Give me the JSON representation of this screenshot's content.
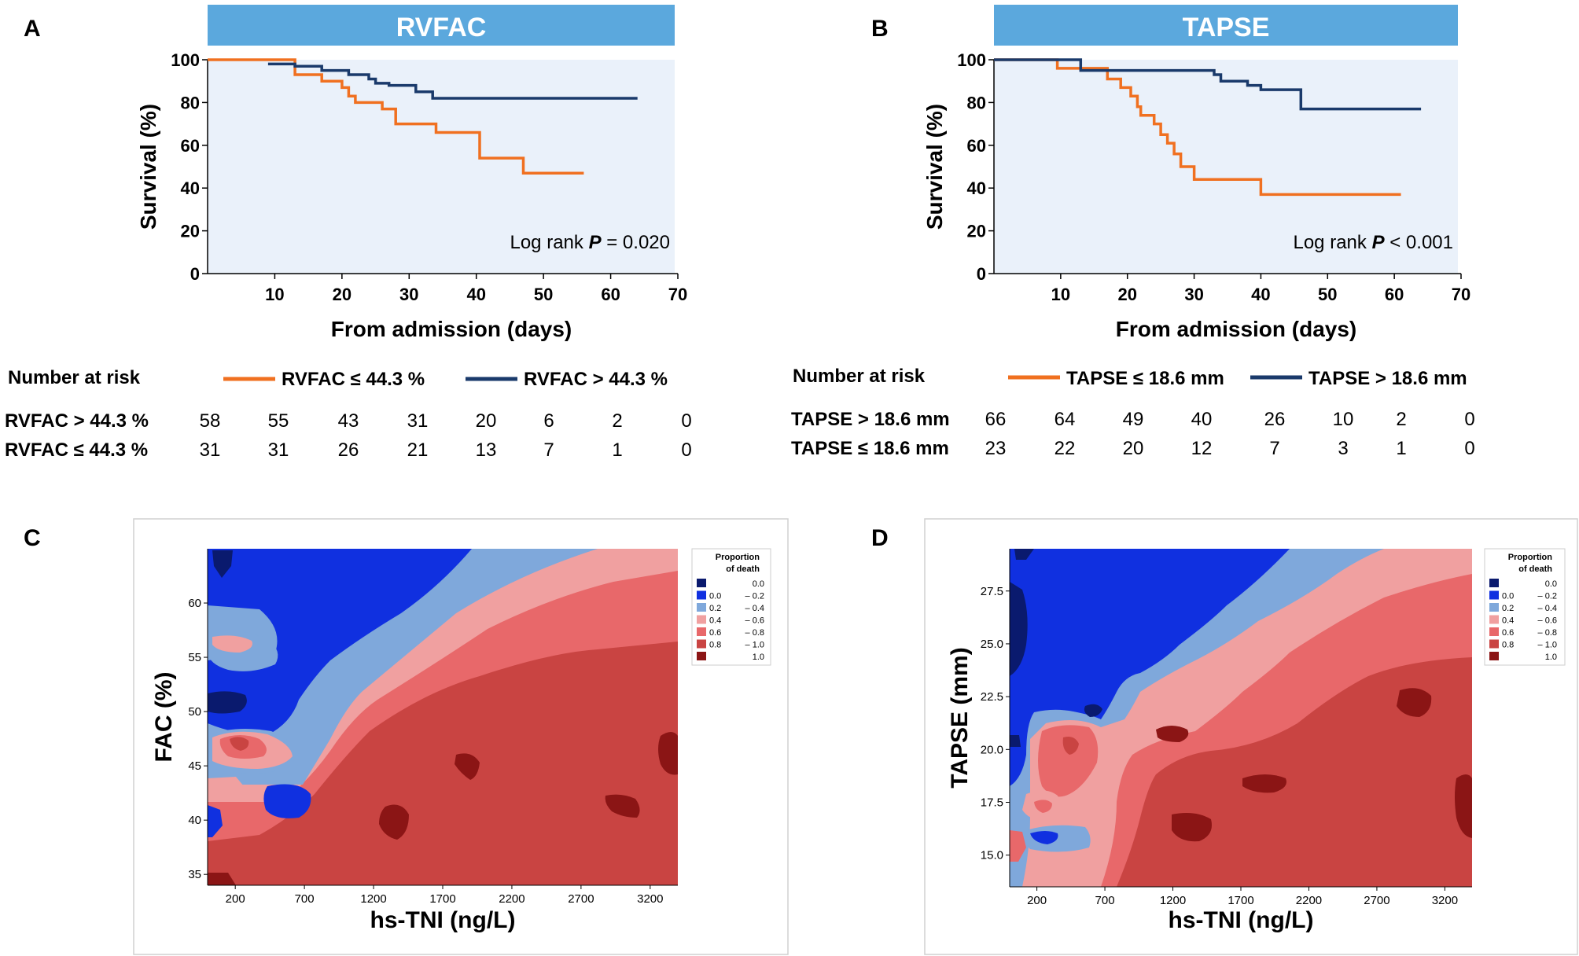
{
  "chart_data": [
    {
      "id": "A",
      "type": "line",
      "panel_label": "A",
      "title": "RVFAC",
      "xlabel": "From admission (days)",
      "ylabel": "Survival (%)",
      "xlim": [
        0,
        70
      ],
      "ylim": [
        0,
        100
      ],
      "x_ticks": [
        "10",
        "20",
        "30",
        "40",
        "50",
        "60",
        "70"
      ],
      "y_ticks": [
        "0",
        "20",
        "40",
        "60",
        "80",
        "100"
      ],
      "annotation": {
        "prefix": "Log rank ",
        "italic": "P",
        "suffix": " = 0.020"
      },
      "series": [
        {
          "name": "RVFAC ≤ 44.3 %",
          "color": "#f07020",
          "x": [
            0,
            13,
            13,
            17,
            17,
            20,
            20,
            21,
            21,
            22,
            22,
            26,
            26,
            28,
            28,
            34,
            34,
            40.5,
            40.5,
            47,
            47,
            56
          ],
          "y": [
            100,
            100,
            93,
            93,
            90,
            90,
            87,
            87,
            83,
            83,
            80,
            80,
            77,
            77,
            70,
            70,
            66,
            66,
            54,
            54,
            47,
            47
          ]
        },
        {
          "name": "RVFAC > 44.3 %",
          "color": "#1a3a6b",
          "x": [
            9,
            13,
            13,
            17,
            17,
            21,
            21,
            24,
            24,
            25,
            25,
            27,
            27,
            31,
            31,
            33.5,
            33.5,
            64
          ],
          "y": [
            98,
            98,
            97,
            97,
            95,
            95,
            93,
            93,
            91,
            91,
            89,
            89,
            88,
            88,
            85,
            85,
            82,
            82
          ]
        }
      ],
      "legend": {
        "title": "Number at risk",
        "entries": [
          {
            "label": "RVFAC ≤ 44.3 %",
            "color": "#f07020"
          },
          {
            "label": "RVFAC > 44.3 %",
            "color": "#1a3a6b"
          }
        ]
      },
      "risk_table": [
        {
          "label": "RVFAC > 44.3 %",
          "values": [
            "58",
            "55",
            "43",
            "31",
            "20",
            "6",
            "2",
            "0"
          ]
        },
        {
          "label": "RVFAC ≤ 44.3 %",
          "values": [
            "31",
            "31",
            "26",
            "21",
            "13",
            "7",
            "1",
            "0"
          ]
        }
      ]
    },
    {
      "id": "B",
      "type": "line",
      "panel_label": "B",
      "title": "TAPSE",
      "xlabel": "From admission (days)",
      "ylabel": "Survival (%)",
      "xlim": [
        0,
        70
      ],
      "ylim": [
        0,
        100
      ],
      "x_ticks": [
        "10",
        "20",
        "30",
        "40",
        "50",
        "60",
        "70"
      ],
      "y_ticks": [
        "0",
        "20",
        "40",
        "60",
        "80",
        "100"
      ],
      "annotation": {
        "prefix": "Log rank ",
        "italic": "P",
        "suffix": " < 0.001"
      },
      "series": [
        {
          "name": "TAPSE ≤ 18.6 mm",
          "color": "#f07020",
          "x": [
            0,
            9.5,
            9.5,
            17,
            17,
            19,
            19,
            20.5,
            20.5,
            21.5,
            21.5,
            22,
            22,
            24,
            24,
            25,
            25,
            26,
            26,
            27,
            27,
            28,
            28,
            30,
            30,
            40,
            40,
            61
          ],
          "y": [
            100,
            100,
            96,
            96,
            91,
            91,
            87,
            87,
            83,
            83,
            78,
            78,
            74,
            74,
            70,
            70,
            65,
            65,
            61,
            61,
            56,
            56,
            50,
            50,
            44,
            44,
            37,
            37
          ]
        },
        {
          "name": "TAPSE > 18.6 mm",
          "color": "#1a3a6b",
          "x": [
            0,
            13,
            13,
            33,
            33,
            34,
            34,
            38,
            38,
            40,
            40,
            46,
            46,
            64
          ],
          "y": [
            100,
            100,
            95,
            95,
            93,
            93,
            90,
            90,
            88,
            88,
            86,
            86,
            77,
            77
          ]
        }
      ],
      "legend": {
        "title": "Number at risk",
        "entries": [
          {
            "label": "TAPSE ≤ 18.6 mm",
            "color": "#f07020"
          },
          {
            "label": "TAPSE > 18.6 mm",
            "color": "#1a3a6b"
          }
        ]
      },
      "risk_table": [
        {
          "label": "TAPSE > 18.6 mm",
          "values": [
            "66",
            "64",
            "49",
            "40",
            "26",
            "10",
            "2",
            "0"
          ]
        },
        {
          "label": "TAPSE ≤ 18.6 mm",
          "values": [
            "23",
            "22",
            "20",
            "12",
            "7",
            "3",
            "1",
            "0"
          ]
        }
      ]
    },
    {
      "id": "C",
      "type": "heatmap",
      "panel_label": "C",
      "xlabel": "hs-TNI (ng/L)",
      "ylabel": "FAC (%)",
      "xlim": [
        0,
        3400
      ],
      "ylim": [
        34,
        65
      ],
      "x_ticks": [
        "200",
        "700",
        "1200",
        "1700",
        "2200",
        "2700",
        "3200"
      ],
      "y_ticks": [
        "35",
        "40",
        "45",
        "50",
        "55",
        "60"
      ],
      "legend": {
        "title": [
          "Proportion",
          "of death"
        ],
        "entries": [
          {
            "color": "#0a1a6e",
            "from": "",
            "to": "0.0"
          },
          {
            "color": "#1030e0",
            "from": "0.0",
            "to": "–  0.2"
          },
          {
            "color": "#7fa8db",
            "from": "0.2",
            "to": "–  0.4"
          },
          {
            "color": "#f0a0a0",
            "from": "0.4",
            "to": "–  0.6"
          },
          {
            "color": "#e8686a",
            "from": "0.6",
            "to": "–  0.8"
          },
          {
            "color": "#c94442",
            "from": "0.8",
            "to": "–  1.0"
          },
          {
            "color": "#8b1515",
            "from": "",
            "to": "1.0"
          }
        ]
      }
    },
    {
      "id": "D",
      "type": "heatmap",
      "panel_label": "D",
      "xlabel": "hs-TNI (ng/L)",
      "ylabel": "TAPSE (mm)",
      "xlim": [
        0,
        3400
      ],
      "ylim": [
        13.5,
        29.5
      ],
      "x_ticks": [
        "200",
        "700",
        "1200",
        "1700",
        "2200",
        "2700",
        "3200"
      ],
      "y_ticks": [
        "15.0",
        "17.5",
        "20.0",
        "22.5",
        "25.0",
        "27.5"
      ],
      "legend": {
        "title": [
          "Proportion",
          "of death"
        ],
        "entries": [
          {
            "color": "#0a1a6e",
            "from": "",
            "to": "0.0"
          },
          {
            "color": "#1030e0",
            "from": "0.0",
            "to": "–  0.2"
          },
          {
            "color": "#7fa8db",
            "from": "0.2",
            "to": "–  0.4"
          },
          {
            "color": "#f0a0a0",
            "from": "0.4",
            "to": "–  0.6"
          },
          {
            "color": "#e8686a",
            "from": "0.6",
            "to": "–  0.8"
          },
          {
            "color": "#c94442",
            "from": "0.8",
            "to": "–  1.0"
          },
          {
            "color": "#8b1515",
            "from": "",
            "to": "1.0"
          }
        ]
      }
    }
  ]
}
